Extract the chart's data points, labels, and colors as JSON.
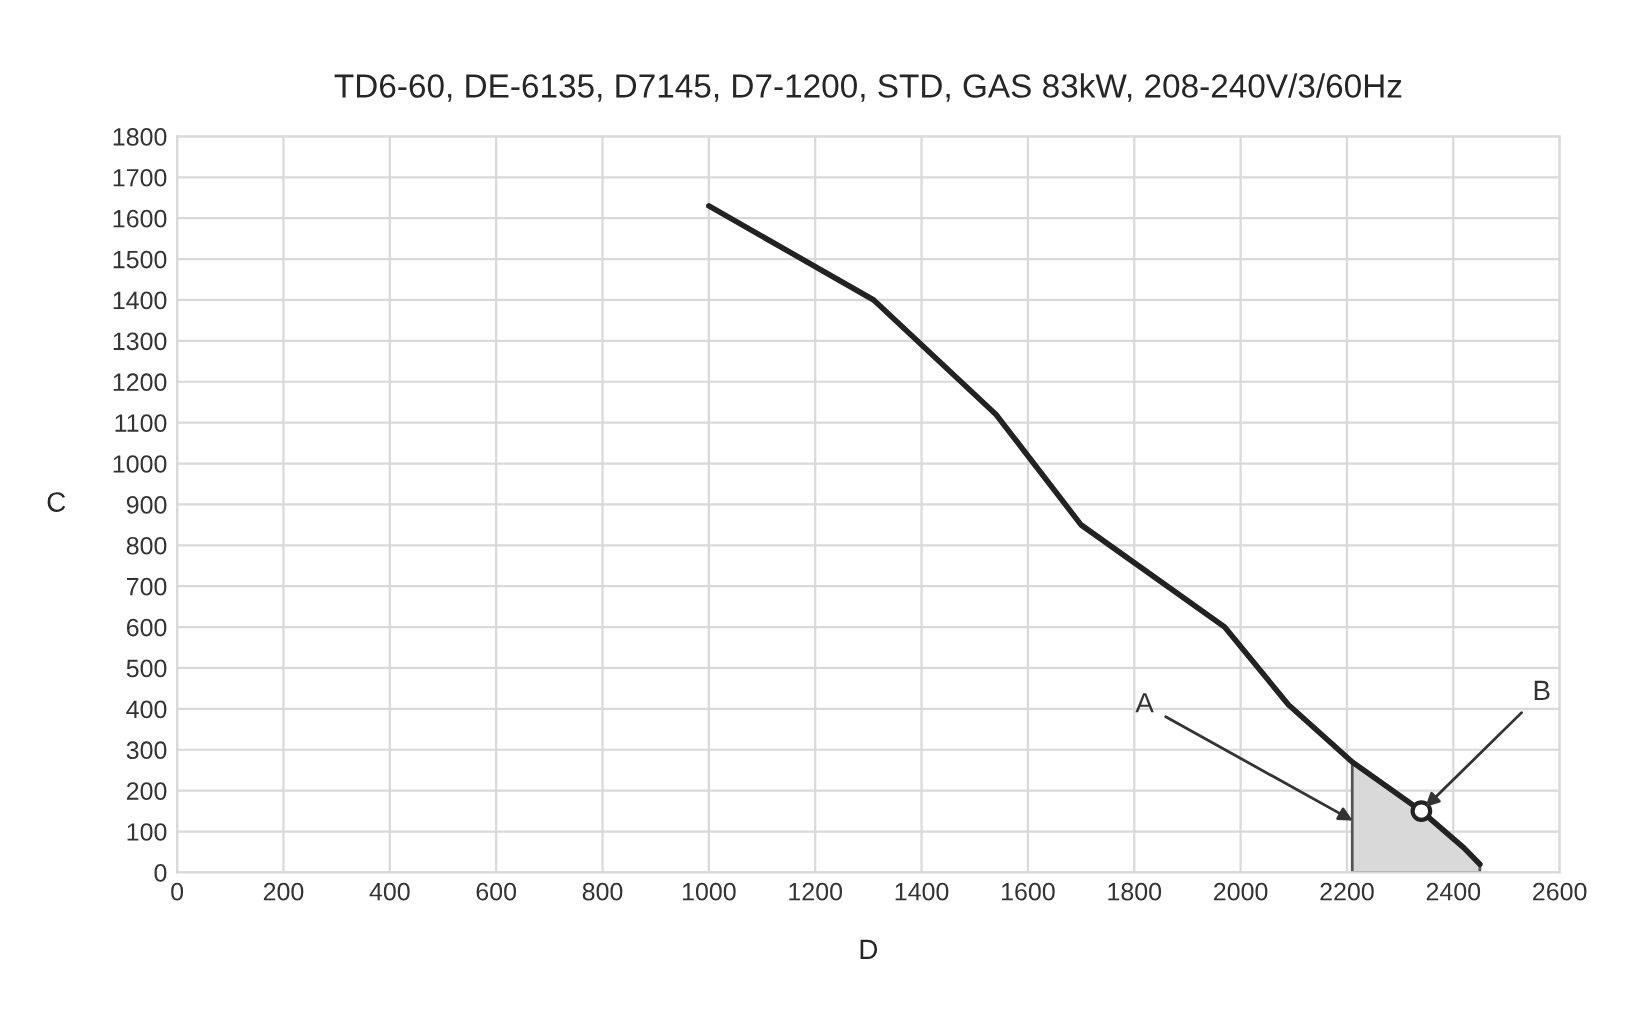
{
  "chart_data": {
    "type": "line",
    "title": "TD6-60, DE-6135, D7145, D7-1200, STD, GAS 83kW, 208-240V/3/60Hz",
    "xlabel": "D",
    "ylabel": "C",
    "series": [
      {
        "color": "#222222",
        "x": [
          1000,
          1310,
          1540,
          1700,
          1970,
          2090,
          2210,
          2340,
          2420,
          2450
        ],
        "values": [
          1630,
          1400,
          1120,
          850,
          600,
          410,
          270,
          150,
          60,
          20
        ]
      },
      {
        "type": "area",
        "color": "#d9d9d9",
        "x": [
          2210,
          2340,
          2420,
          2450
        ],
        "values": [
          270,
          150,
          60,
          20
        ]
      },
      {
        "type": "scatter",
        "color": "#222222",
        "marker": "circle",
        "x": [
          2340
        ],
        "values": [
          150
        ]
      }
    ],
    "annotations": [
      {
        "text": "A",
        "x": 2220,
        "y": 120
      },
      {
        "text": "B",
        "x": 2340,
        "y": 150
      }
    ],
    "xlim": [
      0,
      2600
    ],
    "xticks": [
      0,
      200,
      400,
      600,
      800,
      1000,
      1200,
      1400,
      1600,
      1800,
      2000,
      2200,
      2400,
      2600
    ],
    "ylim": [
      0,
      1800
    ],
    "yticks": [
      0,
      100,
      200,
      300,
      400,
      500,
      600,
      700,
      800,
      900,
      1000,
      1100,
      1200,
      1300,
      1400,
      1500,
      1600,
      1700,
      1800
    ],
    "grid": true,
    "marker": "none",
    "line_style": "solid"
  }
}
